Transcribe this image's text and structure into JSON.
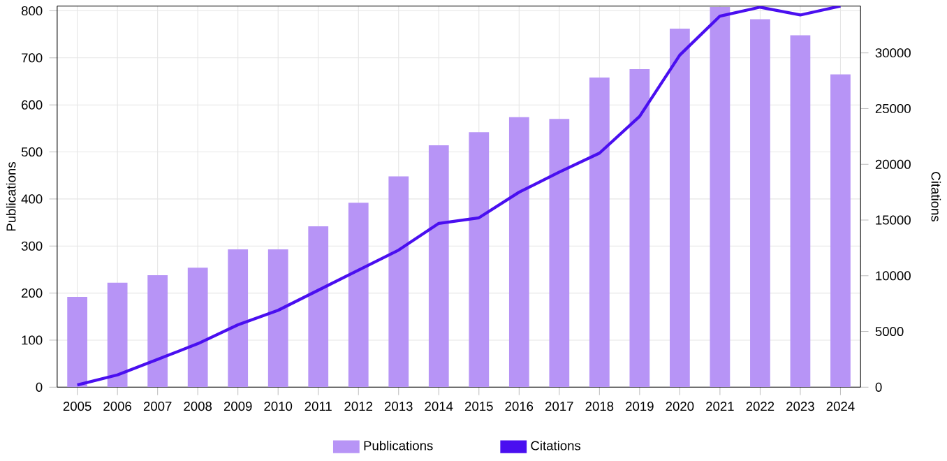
{
  "chart_data": {
    "type": "bar",
    "categories": [
      "2005",
      "2006",
      "2007",
      "2008",
      "2009",
      "2010",
      "2011",
      "2012",
      "2013",
      "2014",
      "2015",
      "2016",
      "2017",
      "2018",
      "2019",
      "2020",
      "2021",
      "2022",
      "2023",
      "2024"
    ],
    "series": [
      {
        "name": "Publications",
        "color": "#b794f6",
        "values": [
          192,
          222,
          238,
          254,
          293,
          293,
          342,
          392,
          448,
          514,
          542,
          574,
          570,
          658,
          676,
          762,
          808,
          782,
          748,
          665
        ]
      },
      {
        "name": "Citations",
        "type": "line",
        "axis": "y2",
        "color": "#4a0ff0",
        "values": [
          200,
          1100,
          2500,
          3900,
          5600,
          6900,
          8700,
          10500,
          12300,
          14700,
          15200,
          17500,
          19300,
          21000,
          24300,
          29800,
          33300,
          34100,
          33400,
          34200
        ]
      }
    ],
    "ylabel": "Publications",
    "y2label": "Citations",
    "ylim": [
      0,
      810
    ],
    "yticks": [
      0,
      100,
      200,
      300,
      400,
      500,
      600,
      700,
      800
    ],
    "y2lim": [
      0,
      34200
    ],
    "y2ticks": [
      0,
      5000,
      10000,
      15000,
      20000,
      25000,
      30000
    ],
    "grid": true,
    "legend": "bottom"
  }
}
